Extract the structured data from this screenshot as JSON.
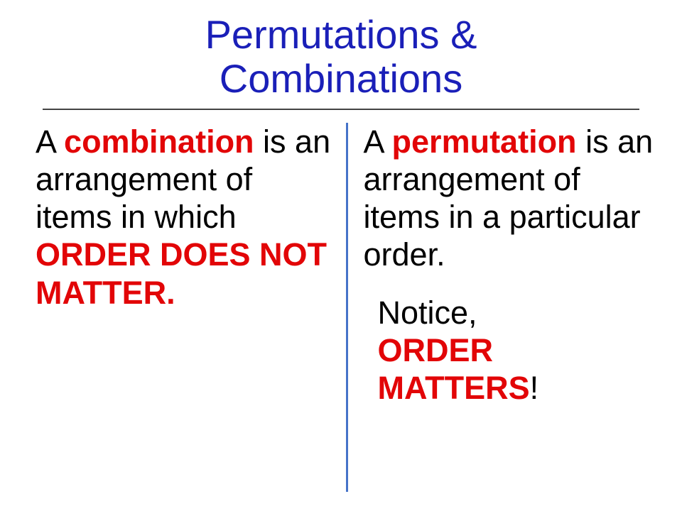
{
  "colors": {
    "title": "#1a1fb8",
    "text": "#000000",
    "highlight": "#e20507",
    "divider": "#4673c9",
    "hr": "#444444"
  },
  "title": {
    "line1": "Permutations &",
    "line2": "Combinations"
  },
  "left": {
    "pre": "A ",
    "highlight1": "combination",
    "mid": " is an arrangement of items in which ",
    "highlight2": "ORDER DOES NOT MATTER."
  },
  "right": {
    "pre": "A ",
    "highlight1": "permutation",
    "mid": " is an arrangement of items in a particular order."
  },
  "notice": {
    "pre": "Notice, ",
    "highlight": "ORDER MATTERS",
    "excl": "!"
  }
}
